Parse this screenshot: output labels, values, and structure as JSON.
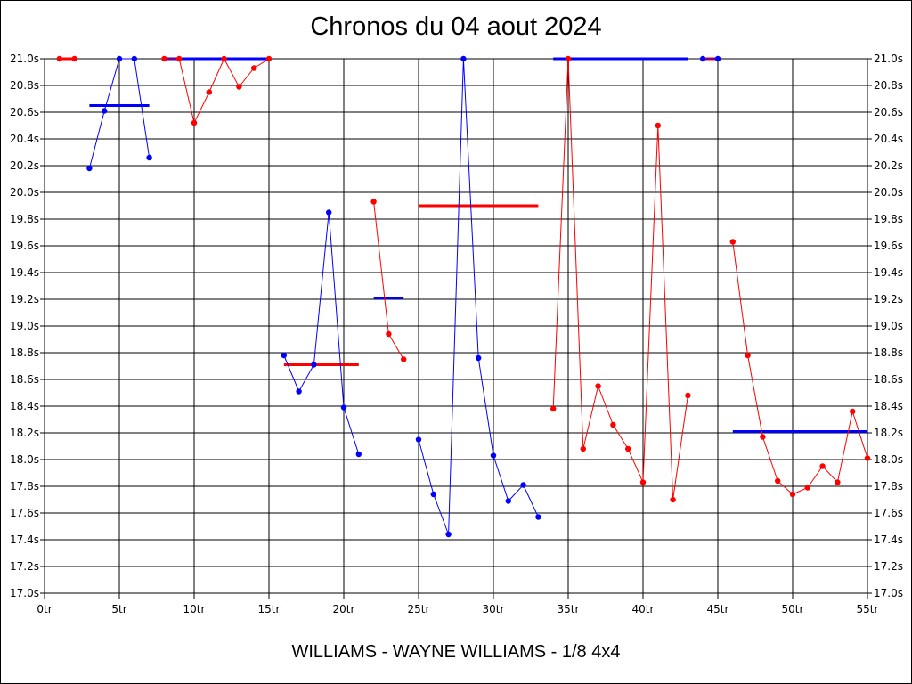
{
  "chart_data": {
    "type": "line",
    "title": "Chronos du 04 aout 2024",
    "subtitle": "WILLIAMS - WAYNE WILLIAMS - 1/8 4x4",
    "xlabel": "",
    "ylabel": "",
    "xlim": [
      0,
      55
    ],
    "ylim": [
      17.0,
      21.0
    ],
    "grid": true,
    "x_ticks": [
      0,
      5,
      10,
      15,
      20,
      25,
      30,
      35,
      40,
      45,
      50,
      55
    ],
    "x_tick_labels": [
      "0tr",
      "5tr",
      "10tr",
      "15tr",
      "20tr",
      "25tr",
      "30tr",
      "35tr",
      "40tr",
      "45tr",
      "50tr",
      "55tr"
    ],
    "y_ticks": [
      17.0,
      17.2,
      17.4,
      17.6,
      17.8,
      18.0,
      18.2,
      18.4,
      18.6,
      18.8,
      19.0,
      19.2,
      19.4,
      19.6,
      19.8,
      20.0,
      20.2,
      20.4,
      20.6,
      20.8,
      21.0
    ],
    "y_tick_labels": [
      "17.0s",
      "17.2s",
      "17.4s",
      "17.6s",
      "17.8s",
      "18.0s",
      "18.2s",
      "18.4s",
      "18.6s",
      "18.8s",
      "19.0s",
      "19.2s",
      "19.4s",
      "19.6s",
      "19.8s",
      "20.0s",
      "20.2s",
      "20.4s",
      "20.6s",
      "20.8s",
      "21.0s"
    ],
    "series": [
      {
        "color": "#ff0000",
        "x": [
          1,
          2
        ],
        "y": [
          21.0,
          21.0
        ]
      },
      {
        "color": "#0000ff",
        "x": [
          3,
          4,
          5,
          6,
          7
        ],
        "y": [
          20.18,
          20.61,
          21.0,
          21.0,
          20.26
        ]
      },
      {
        "color": "#ff0000",
        "x": [
          8,
          9,
          10,
          11,
          12,
          13,
          14,
          15
        ],
        "y": [
          21.0,
          21.0,
          20.52,
          20.75,
          21.0,
          20.79,
          20.93,
          21.0
        ]
      },
      {
        "color": "#0000ff",
        "x": [
          16,
          17,
          18,
          19,
          20,
          21
        ],
        "y": [
          18.78,
          18.51,
          18.71,
          19.85,
          18.39,
          18.04
        ]
      },
      {
        "color": "#ff0000",
        "x": [
          22,
          23,
          24
        ],
        "y": [
          19.93,
          18.94,
          18.75
        ]
      },
      {
        "color": "#0000ff",
        "x": [
          25,
          26,
          27,
          28,
          29,
          30,
          31,
          32,
          33
        ],
        "y": [
          18.15,
          17.74,
          17.44,
          21.0,
          18.76,
          18.03,
          17.69,
          17.81,
          17.57
        ]
      },
      {
        "color": "#ff0000",
        "x": [
          34,
          35,
          36,
          37,
          38,
          39,
          40,
          41,
          42,
          43
        ],
        "y": [
          18.38,
          21.0,
          18.08,
          18.55,
          18.26,
          18.08,
          17.83,
          20.5,
          17.7,
          18.48
        ]
      },
      {
        "color": "#0000ff",
        "x": [
          44,
          45
        ],
        "y": [
          21.0,
          21.0
        ]
      },
      {
        "color": "#ff0000",
        "x": [
          46,
          47,
          48,
          49,
          50,
          51,
          52,
          53,
          54,
          55
        ],
        "y": [
          19.63,
          18.78,
          18.17,
          17.84,
          17.74,
          17.79,
          17.95,
          17.83,
          18.36,
          18.01
        ]
      }
    ],
    "lap_spikes": [
      {
        "color": "#ff0000",
        "x": 35,
        "y": [
          21.0,
          20.9
        ]
      }
    ],
    "average_lines": [
      {
        "color": "#ff0000",
        "x_start": 1,
        "x_end": 2,
        "y": 21.0
      },
      {
        "color": "#0000ff",
        "x_start": 3,
        "x_end": 7,
        "y": 20.65
      },
      {
        "color": "#0000ff",
        "x_start": 8,
        "x_end": 15,
        "y": 21.0
      },
      {
        "color": "#ff0000",
        "x_start": 16,
        "x_end": 21,
        "y": 18.71
      },
      {
        "color": "#0000ff",
        "x_start": 22,
        "x_end": 24,
        "y": 19.21
      },
      {
        "color": "#ff0000",
        "x_start": 25,
        "x_end": 33,
        "y": 19.9
      },
      {
        "color": "#0000ff",
        "x_start": 34,
        "x_end": 43,
        "y": 21.0
      },
      {
        "color": "#ff0000",
        "x_start": 44,
        "x_end": 45,
        "y": 21.0
      },
      {
        "color": "#0000ff",
        "x_start": 46,
        "x_end": 55,
        "y": 18.21
      }
    ]
  }
}
